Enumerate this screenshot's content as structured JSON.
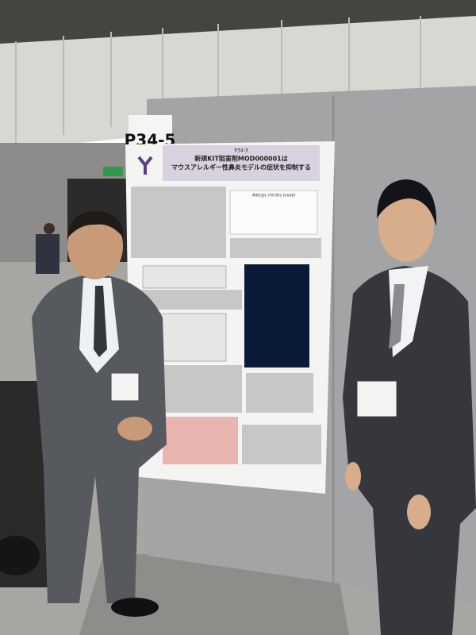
{
  "board_label": "P34-5",
  "poster": {
    "number": "P34-3",
    "title_lines": [
      "新規KIT阻害剤MOD000001は",
      "マウスアレルギー性鼻炎モデルの症状を抑制する"
    ],
    "figure_caption": "Allergic rhinitis model"
  }
}
